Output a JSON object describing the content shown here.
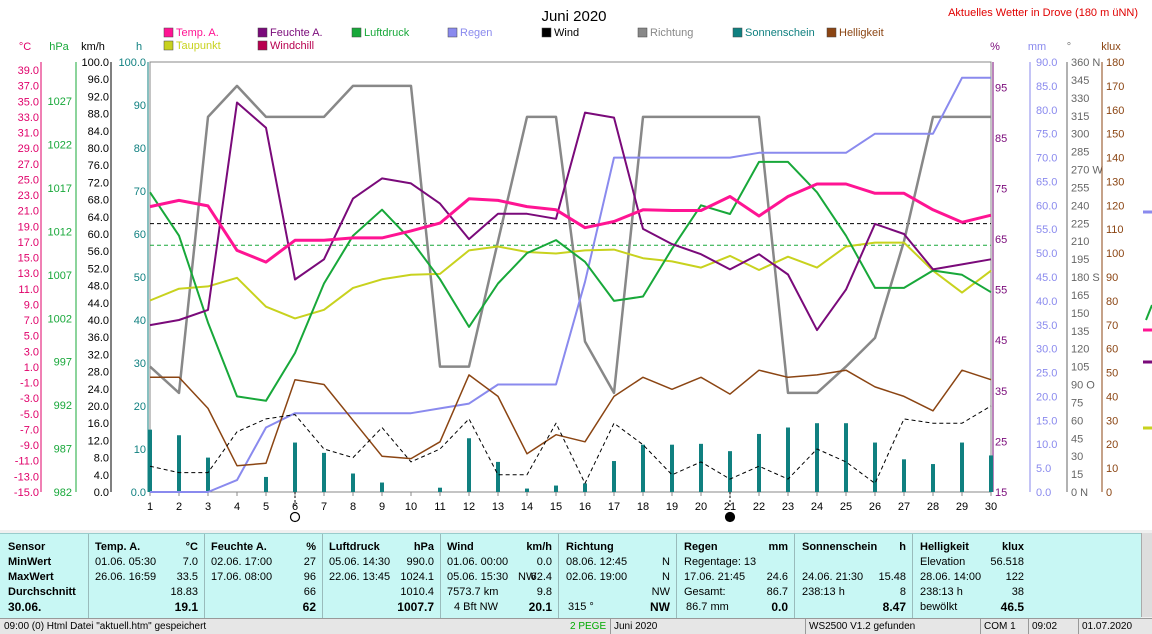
{
  "header": {
    "title": "Juni 2020",
    "location": "Aktuelles Wetter in Drove (180 m üNN)"
  },
  "legend": [
    {
      "label": "Temp. A.",
      "color": "#ff1493"
    },
    {
      "label": "Feuchte A.",
      "color": "#7a0a7a"
    },
    {
      "label": "Luftdruck",
      "color": "#18a83a"
    },
    {
      "label": "Regen",
      "color": "#8a8aee"
    },
    {
      "label": "Wind",
      "color": "#000000"
    },
    {
      "label": "Richtung",
      "color": "#888888"
    },
    {
      "label": "Sonnenschein",
      "color": "#108080"
    },
    {
      "label": "Helligkeit",
      "color": "#8b4513"
    },
    {
      "label": "Taupunkt",
      "color": "#c8d21e"
    },
    {
      "label": "Windchill",
      "color": "#b8004f"
    }
  ],
  "axes": {
    "celsius": {
      "unit": "°C",
      "ticks": [
        "39.0",
        "37.0",
        "35.0",
        "33.0",
        "31.0",
        "29.0",
        "27.0",
        "25.0",
        "23.0",
        "21.0",
        "19.0",
        "17.0",
        "15.0",
        "13.0",
        "11.0",
        "9.0",
        "7.0",
        "5.0",
        "3.0",
        "1.0",
        "-1.0",
        "-3.0",
        "-5.0",
        "-7.0",
        "-9.0",
        "-11.0",
        "-13.0",
        "-15.0"
      ]
    },
    "hpa": {
      "unit": "hPa",
      "ticks": [
        "1027",
        "1022",
        "1017",
        "1012",
        "1007",
        "1002",
        "997",
        "992",
        "987",
        "982"
      ]
    },
    "kmh": {
      "unit": "km/h",
      "ticks": [
        "100.0",
        "96.0",
        "92.0",
        "88.0",
        "84.0",
        "80.0",
        "76.0",
        "72.0",
        "68.0",
        "64.0",
        "60.0",
        "56.0",
        "52.0",
        "48.0",
        "44.0",
        "40.0",
        "36.0",
        "32.0",
        "28.0",
        "24.0",
        "20.0",
        "16.0",
        "12.0",
        "8.0",
        "4.0",
        "0.0"
      ]
    },
    "hours": {
      "unit": "h",
      "ticks": [
        "100.0",
        "90",
        "80",
        "70",
        "60",
        "50",
        "40",
        "30",
        "20",
        "10",
        "0.0"
      ]
    },
    "percent": {
      "unit": "%",
      "ticks": [
        "95",
        "85",
        "75",
        "65",
        "55",
        "45",
        "35",
        "25",
        "15"
      ]
    },
    "mm": {
      "unit": "mm",
      "ticks": [
        "90.0",
        "85.0",
        "80.0",
        "75.0",
        "70.0",
        "65.0",
        "60.0",
        "55.0",
        "50.0",
        "45.0",
        "40.0",
        "35.0",
        "30.0",
        "25.0",
        "20.0",
        "15.0",
        "10.0",
        "5.0",
        "0.0"
      ]
    },
    "degree": {
      "unit": "°",
      "ticks": [
        "360 N",
        "345",
        "330",
        "315",
        "300",
        "285",
        "270 W",
        "255",
        "240",
        "225",
        "210",
        "195",
        "180 S",
        "165",
        "150",
        "135",
        "120",
        "105",
        "90 O",
        "75",
        "60",
        "45",
        "30",
        "15",
        "0 N"
      ]
    },
    "klux": {
      "unit": "klux",
      "ticks": [
        "180",
        "170",
        "160",
        "150",
        "140",
        "130",
        "120",
        "110",
        "100",
        "90",
        "80",
        "70",
        "60",
        "50",
        "40",
        "30",
        "20",
        "10",
        "0"
      ]
    },
    "days": [
      "1",
      "2",
      "3",
      "4",
      "5",
      "6",
      "7",
      "8",
      "9",
      "10",
      "11",
      "12",
      "13",
      "14",
      "15",
      "16",
      "17",
      "18",
      "19",
      "20",
      "21",
      "22",
      "23",
      "24",
      "25",
      "26",
      "27",
      "28",
      "29",
      "30"
    ]
  },
  "chart_data": {
    "type": "line",
    "title": "Juni 2020",
    "x": [
      1,
      2,
      3,
      4,
      5,
      6,
      7,
      8,
      9,
      10,
      11,
      12,
      13,
      14,
      15,
      16,
      17,
      18,
      19,
      20,
      21,
      22,
      23,
      24,
      25,
      26,
      27,
      28,
      29,
      30
    ],
    "series": [
      {
        "name": "Temp. A.",
        "unit": "°C",
        "values": [
          21.5,
          22.3,
          21.6,
          15.9,
          14.4,
          17.2,
          17.2,
          17.5,
          17.5,
          18.4,
          19.4,
          22.5,
          22.3,
          21.5,
          21.1,
          18.8,
          19.6,
          21.1,
          21.0,
          21.0,
          22.8,
          20.3,
          22.8,
          24.4,
          24.4,
          23.2,
          23.2,
          21.1,
          19.5,
          20.4
        ]
      },
      {
        "name": "Feuchte A.",
        "unit": "%",
        "values": [
          48,
          49,
          51,
          92,
          87,
          57,
          61,
          73,
          77,
          76,
          72,
          65,
          70,
          70,
          69,
          90,
          89,
          67,
          64,
          62,
          59,
          62,
          58,
          47,
          55,
          68,
          66,
          59,
          60,
          61
        ]
      },
      {
        "name": "Luftdruck",
        "unit": "hPa",
        "values": [
          1016.5,
          1011.5,
          1001.5,
          993,
          992.5,
          998,
          1006,
          1011.5,
          1014.5,
          1011,
          1006.5,
          1001,
          1006,
          1009.5,
          1011,
          1008.5,
          1004,
          1004.5,
          1010,
          1015,
          1014,
          1020,
          1020,
          1016.5,
          1011.5,
          1005.5,
          1005.5,
          1007.5,
          1007,
          1005
        ]
      },
      {
        "name": "Regen",
        "unit": "mm",
        "values": [
          0,
          0,
          0,
          2.5,
          13.5,
          16.5,
          16.5,
          16.5,
          16.5,
          16.5,
          17.5,
          18.5,
          22.5,
          22.5,
          22.5,
          44,
          70,
          70,
          70,
          70,
          70,
          71,
          71,
          71,
          71,
          75,
          75,
          75,
          86.7,
          86.7
        ]
      },
      {
        "name": "Wind",
        "unit": "km/h",
        "values": [
          6,
          4.5,
          4.5,
          14,
          17,
          18,
          10,
          8,
          15,
          7,
          10,
          17,
          4,
          4,
          16,
          2,
          16,
          11,
          4,
          7,
          3,
          6,
          3,
          10,
          7,
          2,
          17,
          16,
          16,
          20
        ]
      },
      {
        "name": "Richtung",
        "unit": "°",
        "values": [
          105,
          83,
          314,
          340,
          314,
          314,
          314,
          340,
          340,
          340,
          105,
          105,
          210,
          314,
          314,
          126,
          83,
          314,
          314,
          314,
          314,
          314,
          83,
          83,
          105,
          129,
          210,
          314,
          314,
          314
        ]
      },
      {
        "name": "Sonnenschein",
        "unit": "h",
        "values": [
          14.5,
          13.2,
          8,
          0,
          3.5,
          11.5,
          9.1,
          4.3,
          2.2,
          0,
          1,
          12.5,
          7,
          0.8,
          1.5,
          2,
          7.2,
          11,
          11,
          11.2,
          9.5,
          13.5,
          15,
          16,
          16,
          11.5,
          7.6,
          6.5,
          11.5,
          8.5
        ]
      },
      {
        "name": "Helligkeit",
        "unit": "klux",
        "values": [
          48,
          48,
          35,
          11,
          12,
          47,
          45,
          30,
          15,
          14,
          21,
          49,
          40,
          16,
          24,
          21,
          40,
          48,
          43,
          48,
          41,
          51,
          48,
          49,
          51,
          44,
          40,
          34,
          51,
          47
        ]
      },
      {
        "name": "Taupunkt",
        "unit": "°C",
        "values": [
          9.5,
          11,
          11.3,
          12.4,
          8.7,
          7.2,
          8.3,
          11.1,
          12.2,
          12.8,
          12.9,
          15.9,
          16.4,
          15.7,
          15.5,
          15.9,
          16,
          14.9,
          14.5,
          13.7,
          15.2,
          13.4,
          15.1,
          13.7,
          16.4,
          16.9,
          16.9,
          13.3,
          10.5,
          13.3
        ]
      }
    ],
    "reference_lines": [
      {
        "name": "Luftdruck Durchschnitt",
        "value": 1010.4,
        "color": "#18a83a",
        "style": "dashed"
      },
      {
        "name": "Temp. Durchschnitt",
        "value": 18.83,
        "color": "#000000",
        "style": "dashed"
      }
    ],
    "markers": [
      {
        "day": 6,
        "symbol": "open-circle"
      },
      {
        "day": 21,
        "symbol": "filled-circle"
      }
    ]
  },
  "stats": {
    "rowlabels": {
      "sensor": "Sensor",
      "min": "MinWert",
      "max": "MaxWert",
      "avg": "Durchschnitt",
      "date": "30.06."
    },
    "temp": {
      "title": "Temp. A.",
      "unit": "°C",
      "min_time": "01.06.  05:30",
      "min_val": "7.0",
      "max_time": "26.06.  16:59",
      "max_val": "33.5",
      "avg": "18.83",
      "current": "19.1"
    },
    "humidity": {
      "title": "Feuchte A.",
      "unit": "%",
      "min_time": "02.06.  17:00",
      "min_val": "27",
      "max_time": "17.06.  08:00",
      "max_val": "96",
      "avg": "66",
      "current": "62"
    },
    "pressure": {
      "title": "Luftdruck",
      "unit": "hPa",
      "min_time": "05.06.  14:30",
      "min_val": "990.0",
      "max_time": "22.06.  13:45",
      "max_val": "1024.1",
      "avg": "1010.4",
      "current": "1007.7"
    },
    "wind": {
      "title": "Wind",
      "unit": "km/h",
      "min_time": "01.06.  00:00",
      "min_val": "0.0",
      "max_time": "05.06.  15:30",
      "max_dir": "NW",
      "max_val": "62.4",
      "total": "7573.7 km",
      "avg": "9.8",
      "beaufort": "4 Bft NW",
      "current": "20.1"
    },
    "direction": {
      "title": "Richtung",
      "min_time": "08.06.  12:45",
      "min_val": "N",
      "max_time": "02.06.  19:00",
      "max_val": "N",
      "avg": "NW",
      "current_deg": "315 °",
      "current": "NW"
    },
    "rain": {
      "title": "Regen",
      "unit": "mm",
      "days": "Regentage: 13",
      "max_time": "17.06.  21:45",
      "max_val": "24.6",
      "total_label": "Gesamt:",
      "total": "86.7",
      "sum": "86.7 mm",
      "current": "0.0"
    },
    "sun": {
      "title": "Sonnenschein",
      "unit": "h",
      "max_time": "24.06.  21:30",
      "max_val": "15.48",
      "total": "238:13 h",
      "days": "8",
      "current": "8.47"
    },
    "light": {
      "title": "Helligkeit",
      "unit": "klux",
      "elev_label": "Elevation",
      "elev": "56.518",
      "max_time": "28.06.  14:00",
      "max_val": "122",
      "total": "238:13 h",
      "avg": "38",
      "state": "bewölkt",
      "current": "46.5"
    }
  },
  "statusbar": {
    "file": "09:00  (0)  Html Datei \"aktuell.htm\" gespeichert",
    "pegel": "2 PEGE",
    "month": "Juni 2020",
    "version": "WS2500 V1.2 gefunden",
    "port": "COM 1",
    "time": "09:02",
    "date": "01.07.2020"
  }
}
